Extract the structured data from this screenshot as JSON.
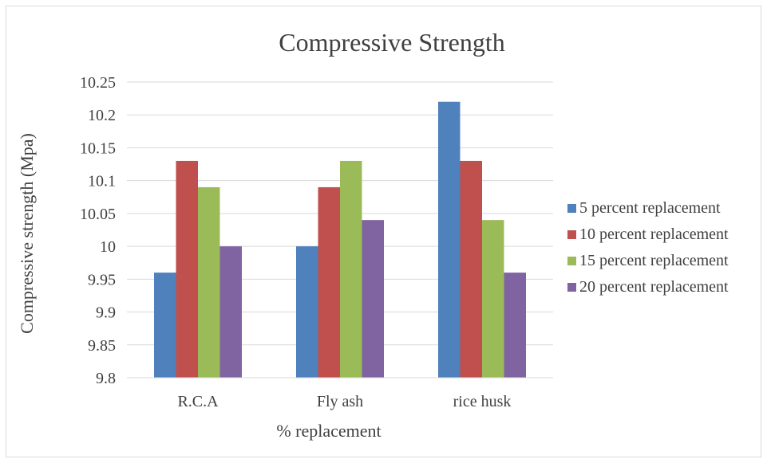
{
  "chart_data": {
    "type": "bar",
    "title": "Compressive Strength",
    "xlabel": "% replacement",
    "ylabel": "Compressive strength (Mpa)",
    "categories": [
      "R.C.A",
      "Fly ash",
      "rice husk"
    ],
    "ylim": [
      9.8,
      10.25
    ],
    "ytick_step": 0.05,
    "yticks": [
      "9.8",
      "9.85",
      "9.9",
      "9.95",
      "10",
      "10.05",
      "10.1",
      "10.15",
      "10.2",
      "10.25"
    ],
    "grid": true,
    "legend_position": "right",
    "series": [
      {
        "name": "5 percent replacement",
        "color": "#4f81bd",
        "values": [
          9.96,
          10.0,
          10.22
        ]
      },
      {
        "name": "10 percent replacement",
        "color": "#c0504d",
        "values": [
          10.13,
          10.09,
          10.13
        ]
      },
      {
        "name": "15 percent replacement",
        "color": "#9bbb59",
        "values": [
          10.09,
          10.13,
          10.04
        ]
      },
      {
        "name": "20 percent replacement",
        "color": "#8064a2",
        "values": [
          10.0,
          10.04,
          9.96
        ]
      }
    ]
  }
}
